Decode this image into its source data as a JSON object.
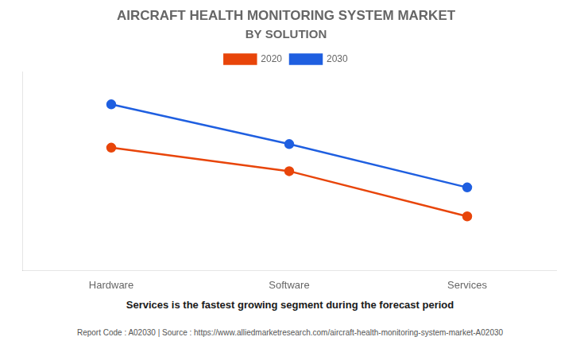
{
  "chart_data": {
    "type": "line",
    "title": "AIRCRAFT HEALTH MONITORING SYSTEM MARKET",
    "subtitle": "BY SOLUTION",
    "categories": [
      "Hardware",
      "Software",
      "Services"
    ],
    "series": [
      {
        "name": "2020",
        "color": "#e8450a",
        "values": [
          0.68,
          0.55,
          0.3
        ]
      },
      {
        "name": "2030",
        "color": "#1f5fe0",
        "values": [
          0.92,
          0.7,
          0.46
        ]
      }
    ],
    "ylim": [
      0.0,
      1.1
    ],
    "yticks": [],
    "tick_labels": "x",
    "grid": false,
    "legend": "top",
    "marker": "circle",
    "line_style": "solid",
    "annotations": [
      "Services is the fastest growing segment during the forecast period",
      "Report Code : A02030  |  Source : https://www.alliedmarketresearch.com/aircraft-health-monitoring-system-market-A02030"
    ]
  }
}
